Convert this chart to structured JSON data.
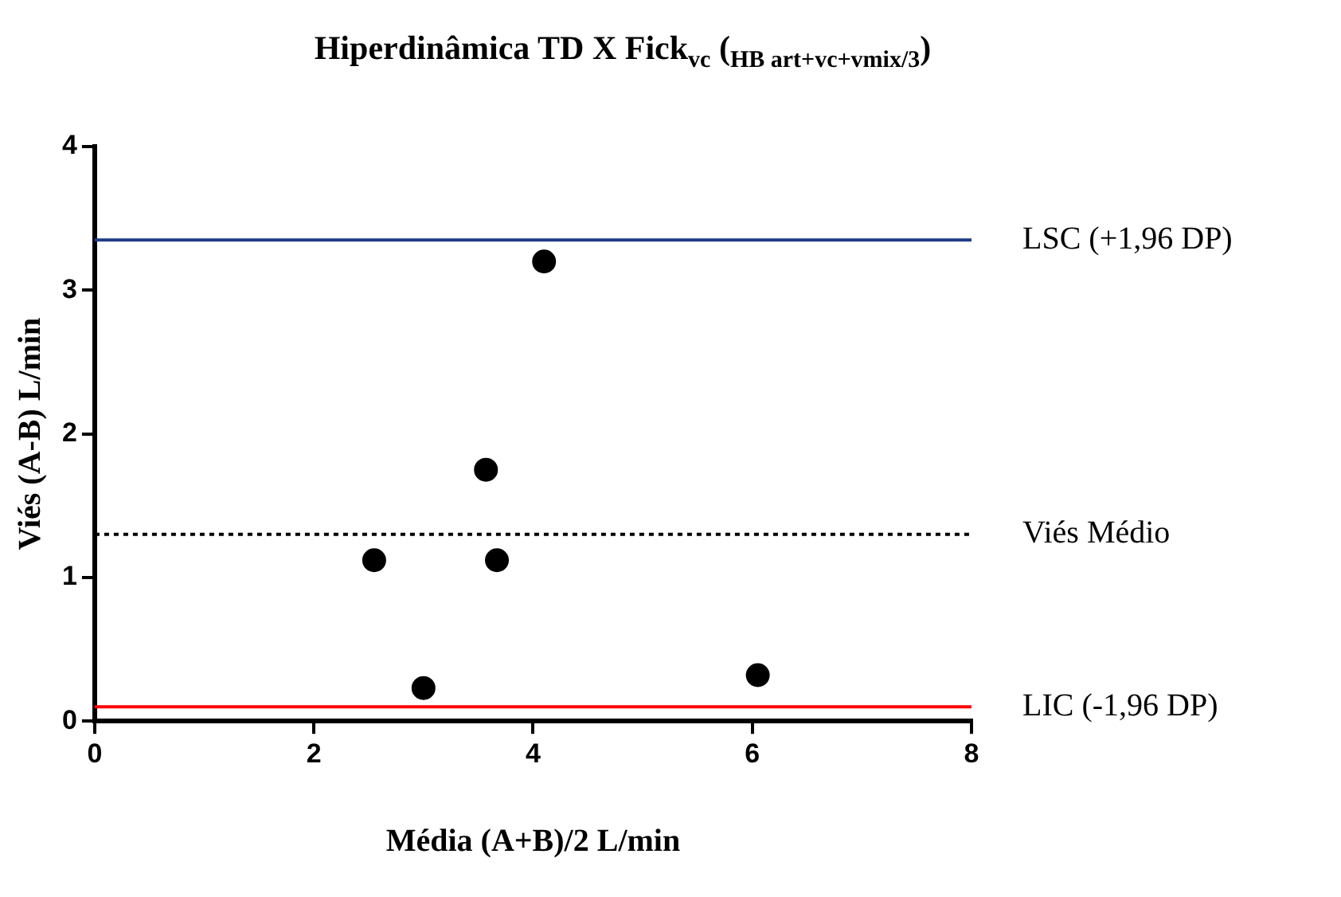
{
  "chart_data": {
    "type": "scatter",
    "title": "Hiperdinâmica TD X Fick$_{vc}$ ($_{HB art+vc+vmix/3}$)",
    "xlabel": "Média (A+B)/2 L/min",
    "ylabel": "Viés (A-B) L/min",
    "x": [
      2.55,
      3.0,
      3.57,
      3.67,
      4.1,
      6.05
    ],
    "series": [
      {
        "color": "#000000",
        "values": [
          1.12,
          0.23,
          1.75,
          1.12,
          3.2,
          0.32
        ]
      }
    ],
    "xlim": [
      0,
      8
    ],
    "xticks": [
      0,
      2,
      4,
      6,
      8
    ],
    "ylim": [
      0,
      4
    ],
    "yticks": [
      0,
      1,
      2,
      3,
      4
    ],
    "ref_lines": [
      {
        "axis": "y",
        "value": 3.35,
        "label": "LSC (+1,96 DP)",
        "color": "#1f3b87",
        "line_style": "solid"
      },
      {
        "axis": "y",
        "value": 1.3,
        "label": "Viés Médio",
        "color": "#000000",
        "line_style": "dotted"
      },
      {
        "axis": "y",
        "value": 0.1,
        "label": "LIC (-1,96 DP)",
        "color": "#ff0000",
        "line_style": "solid"
      }
    ],
    "grid": false,
    "legend": false,
    "marker": "circle"
  }
}
